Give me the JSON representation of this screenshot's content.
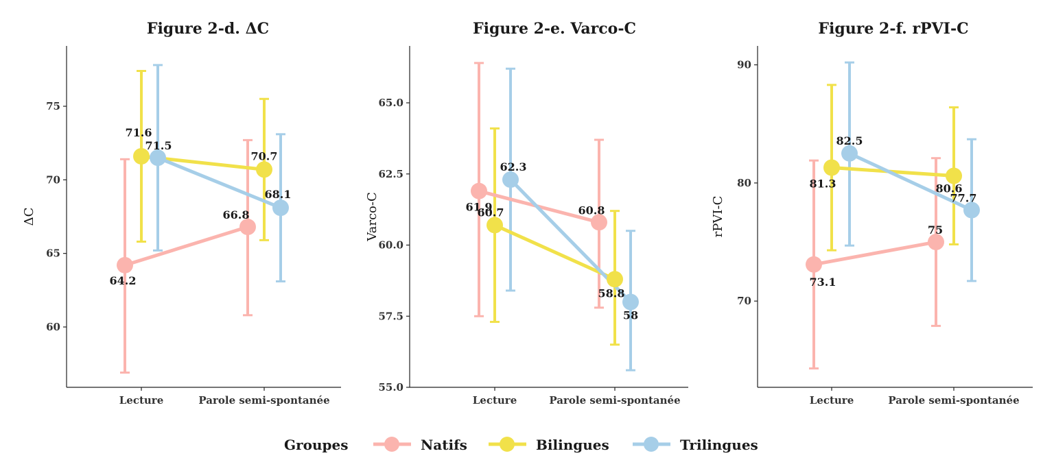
{
  "chart_data": [
    {
      "type": "line",
      "title": "Figure 2-d. ΔC",
      "xlabel": "",
      "ylabel": "ΔC",
      "categories": [
        "Lecture",
        "Parole semi-spontanée"
      ],
      "ylim": [
        55.9,
        79.1
      ],
      "yticks": [
        60,
        65,
        70,
        75
      ],
      "series": [
        {
          "name": "Natifs",
          "values": [
            64.2,
            66.8
          ],
          "error_low": [
            56.9,
            60.8
          ],
          "error_high": [
            71.4,
            72.7
          ],
          "labels": [
            "64.2",
            "66.8"
          ]
        },
        {
          "name": "Bilingues",
          "values": [
            71.6,
            70.7
          ],
          "error_low": [
            65.8,
            65.9
          ],
          "error_high": [
            77.4,
            75.5
          ],
          "labels": [
            "71.6",
            "70.7"
          ]
        },
        {
          "name": "Trilingues",
          "values": [
            71.5,
            68.1
          ],
          "error_low": [
            65.2,
            63.1
          ],
          "error_high": [
            77.8,
            73.1
          ],
          "labels": [
            "71.5",
            "68.1"
          ]
        }
      ]
    },
    {
      "type": "line",
      "title": "Figure 2-e. Varco-C",
      "xlabel": "",
      "ylabel": "Varco-C",
      "categories": [
        "Lecture",
        "Parole semi-spontanée"
      ],
      "ylim": [
        55.0,
        67.0
      ],
      "yticks": [
        "55.0",
        "57.5",
        "60.0",
        "62.5",
        "65.0"
      ],
      "series": [
        {
          "name": "Natifs",
          "values": [
            61.9,
            60.8
          ],
          "error_low": [
            57.5,
            57.8
          ],
          "error_high": [
            66.4,
            63.7
          ],
          "labels": [
            "61.9",
            "60.8"
          ]
        },
        {
          "name": "Bilingues",
          "values": [
            60.7,
            58.8
          ],
          "error_low": [
            57.3,
            56.5
          ],
          "error_high": [
            64.1,
            61.2
          ],
          "labels": [
            "60.7",
            "58.8"
          ]
        },
        {
          "name": "Trilingues",
          "values": [
            62.3,
            58.0
          ],
          "error_low": [
            58.4,
            55.6
          ],
          "error_high": [
            66.2,
            60.5
          ],
          "labels": [
            "62.3",
            "58"
          ]
        }
      ]
    },
    {
      "type": "line",
      "title": "Figure 2-f. rPVI-C",
      "xlabel": "",
      "ylabel": "rPVI-C",
      "categories": [
        "Lecture",
        "Parole semi-spontanée"
      ],
      "ylim": [
        62.7,
        91.6
      ],
      "yticks": [
        70,
        80,
        90
      ],
      "series": [
        {
          "name": "Natifs",
          "values": [
            73.1,
            75.0
          ],
          "error_low": [
            64.3,
            67.9
          ],
          "error_high": [
            81.9,
            82.1
          ],
          "labels": [
            "73.1",
            "75"
          ]
        },
        {
          "name": "Bilingues",
          "values": [
            81.3,
            80.6
          ],
          "error_low": [
            74.3,
            74.8
          ],
          "error_high": [
            88.3,
            86.4
          ],
          "labels": [
            "81.3",
            "80.6"
          ]
        },
        {
          "name": "Trilingues",
          "values": [
            82.5,
            77.7
          ],
          "error_low": [
            74.7,
            71.7
          ],
          "error_high": [
            90.2,
            83.7
          ],
          "labels": [
            "82.5",
            "77.7"
          ]
        }
      ]
    }
  ],
  "legend": {
    "title": "Groupes",
    "position": "bottom",
    "items": [
      {
        "label": "Natifs",
        "color": "#FBB4AE"
      },
      {
        "label": "Bilingues",
        "color": "#F1E14A"
      },
      {
        "label": "Trilingues",
        "color": "#A6CEE8"
      }
    ]
  }
}
